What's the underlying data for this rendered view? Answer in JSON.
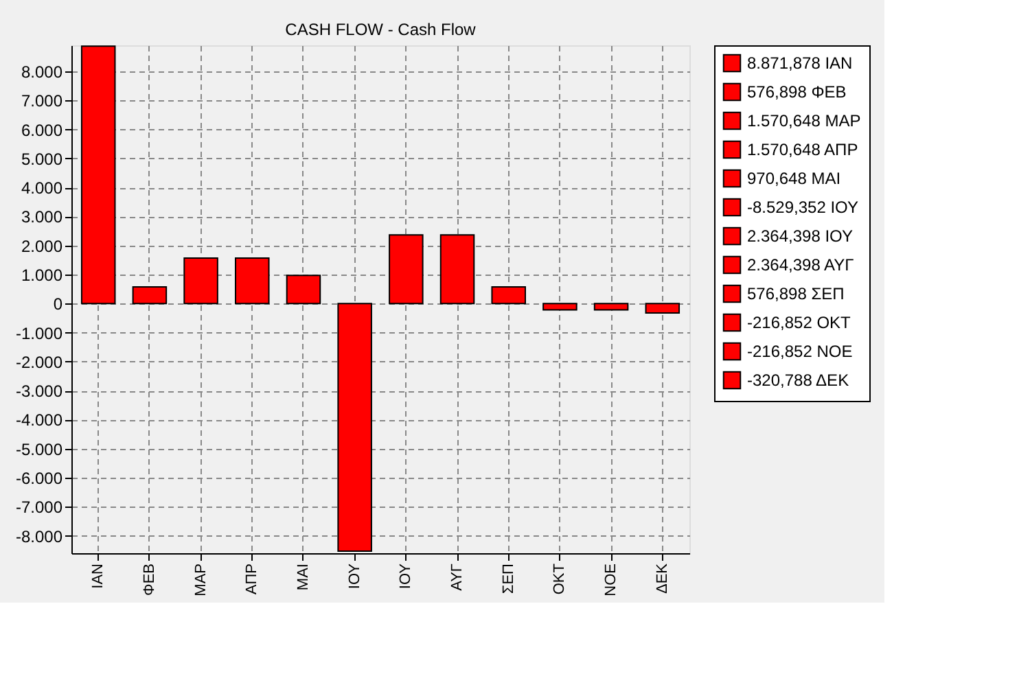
{
  "chart_data": {
    "type": "bar",
    "title": "CASH FLOW - Cash Flow",
    "categories": [
      "ΙΑΝ",
      "ΦΕΒ",
      "ΜΑΡ",
      "ΑΠΡ",
      "ΜΑΙ",
      "ΙΟΥ",
      "ΙΟΥ",
      "ΑΥΓ",
      "ΣΕΠ",
      "ΟΚΤ",
      "ΝΟΕ",
      "ΔΕΚ"
    ],
    "series": [
      {
        "name": "8.871,878 ΙΑΝ",
        "color": "#ff0000",
        "values": [
          8871.878,
          null,
          null,
          null,
          null,
          null,
          null,
          null,
          null,
          null,
          null,
          null
        ]
      },
      {
        "name": "576,898 ΦΕΒ",
        "color": "#ff0000",
        "values": [
          null,
          576.898,
          null,
          null,
          null,
          null,
          null,
          null,
          null,
          null,
          null,
          null
        ]
      },
      {
        "name": "1.570,648 ΜΑΡ",
        "color": "#ff0000",
        "values": [
          null,
          null,
          1570.648,
          null,
          null,
          null,
          null,
          null,
          null,
          null,
          null,
          null
        ]
      },
      {
        "name": "1.570,648 ΑΠΡ",
        "color": "#ff0000",
        "values": [
          null,
          null,
          null,
          1570.648,
          null,
          null,
          null,
          null,
          null,
          null,
          null,
          null
        ]
      },
      {
        "name": "970,648 ΜΑΙ",
        "color": "#ff0000",
        "values": [
          null,
          null,
          null,
          null,
          970.648,
          null,
          null,
          null,
          null,
          null,
          null,
          null
        ]
      },
      {
        "name": "-8.529,352 ΙΟΥ",
        "color": "#ff0000",
        "values": [
          null,
          null,
          null,
          null,
          null,
          -8529.352,
          null,
          null,
          null,
          null,
          null,
          null
        ]
      },
      {
        "name": "2.364,398 ΙΟΥ",
        "color": "#ff0000",
        "values": [
          null,
          null,
          null,
          null,
          null,
          null,
          2364.398,
          null,
          null,
          null,
          null,
          null
        ]
      },
      {
        "name": "2.364,398 ΑΥΓ",
        "color": "#ff0000",
        "values": [
          null,
          null,
          null,
          null,
          null,
          null,
          null,
          2364.398,
          null,
          null,
          null,
          null
        ]
      },
      {
        "name": "576,898 ΣΕΠ",
        "color": "#ff0000",
        "values": [
          null,
          null,
          null,
          null,
          null,
          null,
          null,
          null,
          576.898,
          null,
          null,
          null
        ]
      },
      {
        "name": "-216,852 ΟΚΤ",
        "color": "#ff0000",
        "values": [
          null,
          null,
          null,
          null,
          null,
          null,
          null,
          null,
          null,
          -216.852,
          null,
          null
        ]
      },
      {
        "name": "-216,852 ΝΟΕ",
        "color": "#ff0000",
        "values": [
          null,
          null,
          null,
          null,
          null,
          null,
          null,
          null,
          null,
          null,
          -216.852,
          null
        ]
      },
      {
        "name": "-320,788 ΔΕΚ",
        "color": "#ff0000",
        "values": [
          null,
          null,
          null,
          null,
          null,
          null,
          null,
          null,
          null,
          null,
          null,
          -320.788
        ]
      }
    ],
    "ylim": [
      -8600,
      8900
    ],
    "yticks": [
      {
        "value": -8000,
        "label": "-8.000"
      },
      {
        "value": -7000,
        "label": "-7.000"
      },
      {
        "value": -6000,
        "label": "-6.000"
      },
      {
        "value": -5000,
        "label": "-5.000"
      },
      {
        "value": -4000,
        "label": "-4.000"
      },
      {
        "value": -3000,
        "label": "-3.000"
      },
      {
        "value": -2000,
        "label": "-2.000"
      },
      {
        "value": -1000,
        "label": "-1.000"
      },
      0,
      {
        "value": 1000,
        "label": "1.000"
      },
      {
        "value": 2000,
        "label": "2.000"
      },
      {
        "value": 3000,
        "label": "3.000"
      },
      {
        "value": 4000,
        "label": "4.000"
      },
      {
        "value": 5000,
        "label": "5.000"
      },
      {
        "value": 6000,
        "label": "6.000"
      },
      {
        "value": 7000,
        "label": "7.000"
      },
      {
        "value": 8000,
        "label": "8.000"
      }
    ],
    "grid": true,
    "legend": "top right"
  }
}
